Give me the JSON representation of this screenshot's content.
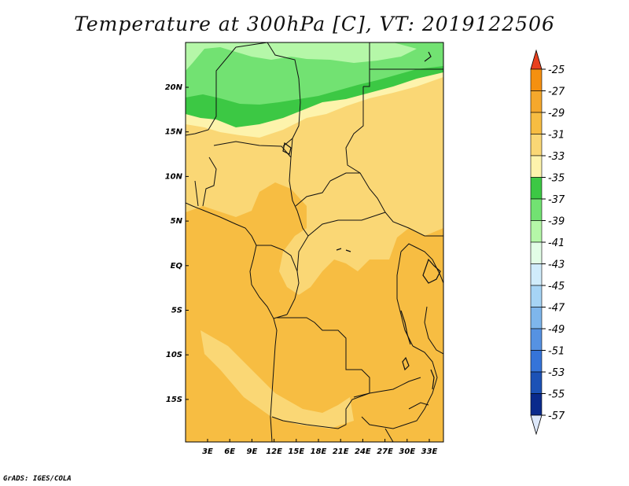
{
  "title": "Temperature at 300hPa [C], VT: 2019122506",
  "credit": "GrADS: IGES/COLA",
  "lat_labels": [
    "20N",
    "15N",
    "10N",
    "5N",
    "EQ",
    "5S",
    "10S",
    "15S"
  ],
  "lon_labels": [
    "3E",
    "6E",
    "9E",
    "12E",
    "15E",
    "18E",
    "21E",
    "24E",
    "27E",
    "30E",
    "33E"
  ],
  "colorbar": {
    "labels": [
      "-25",
      "-27",
      "-29",
      "-31",
      "-33",
      "-35",
      "-37",
      "-39",
      "-41",
      "-43",
      "-45",
      "-47",
      "-49",
      "-51",
      "-53",
      "-55",
      "-57"
    ],
    "colors": [
      "#f06018",
      "#f59010",
      "#f5a82c",
      "#f7bd42",
      "#fad775",
      "#fdf3ac",
      "#3cc844",
      "#72e272",
      "#b5f7a8",
      "#e2fde6",
      "#d0ecfb",
      "#a6d4f5",
      "#7eb6ec",
      "#5692e2",
      "#3574d9",
      "#1c52b6",
      "#0a2a8c",
      "#06135a"
    ],
    "top_arrow_color": "#e8401e",
    "bottom_arrow_color": "#dde8fa"
  },
  "chart_data": {
    "type": "map",
    "variable": "Temperature at 300hPa",
    "units": "C",
    "valid_time": "2019122506",
    "lon_range": [
      0,
      35
    ],
    "lat_range": [
      -20,
      25
    ],
    "contour_levels": [
      -25,
      -27,
      -29,
      -31,
      -33,
      -35,
      -37,
      -39,
      -41,
      -43,
      -45,
      -47,
      -49,
      -51,
      -53,
      -55,
      -57
    ]
  }
}
